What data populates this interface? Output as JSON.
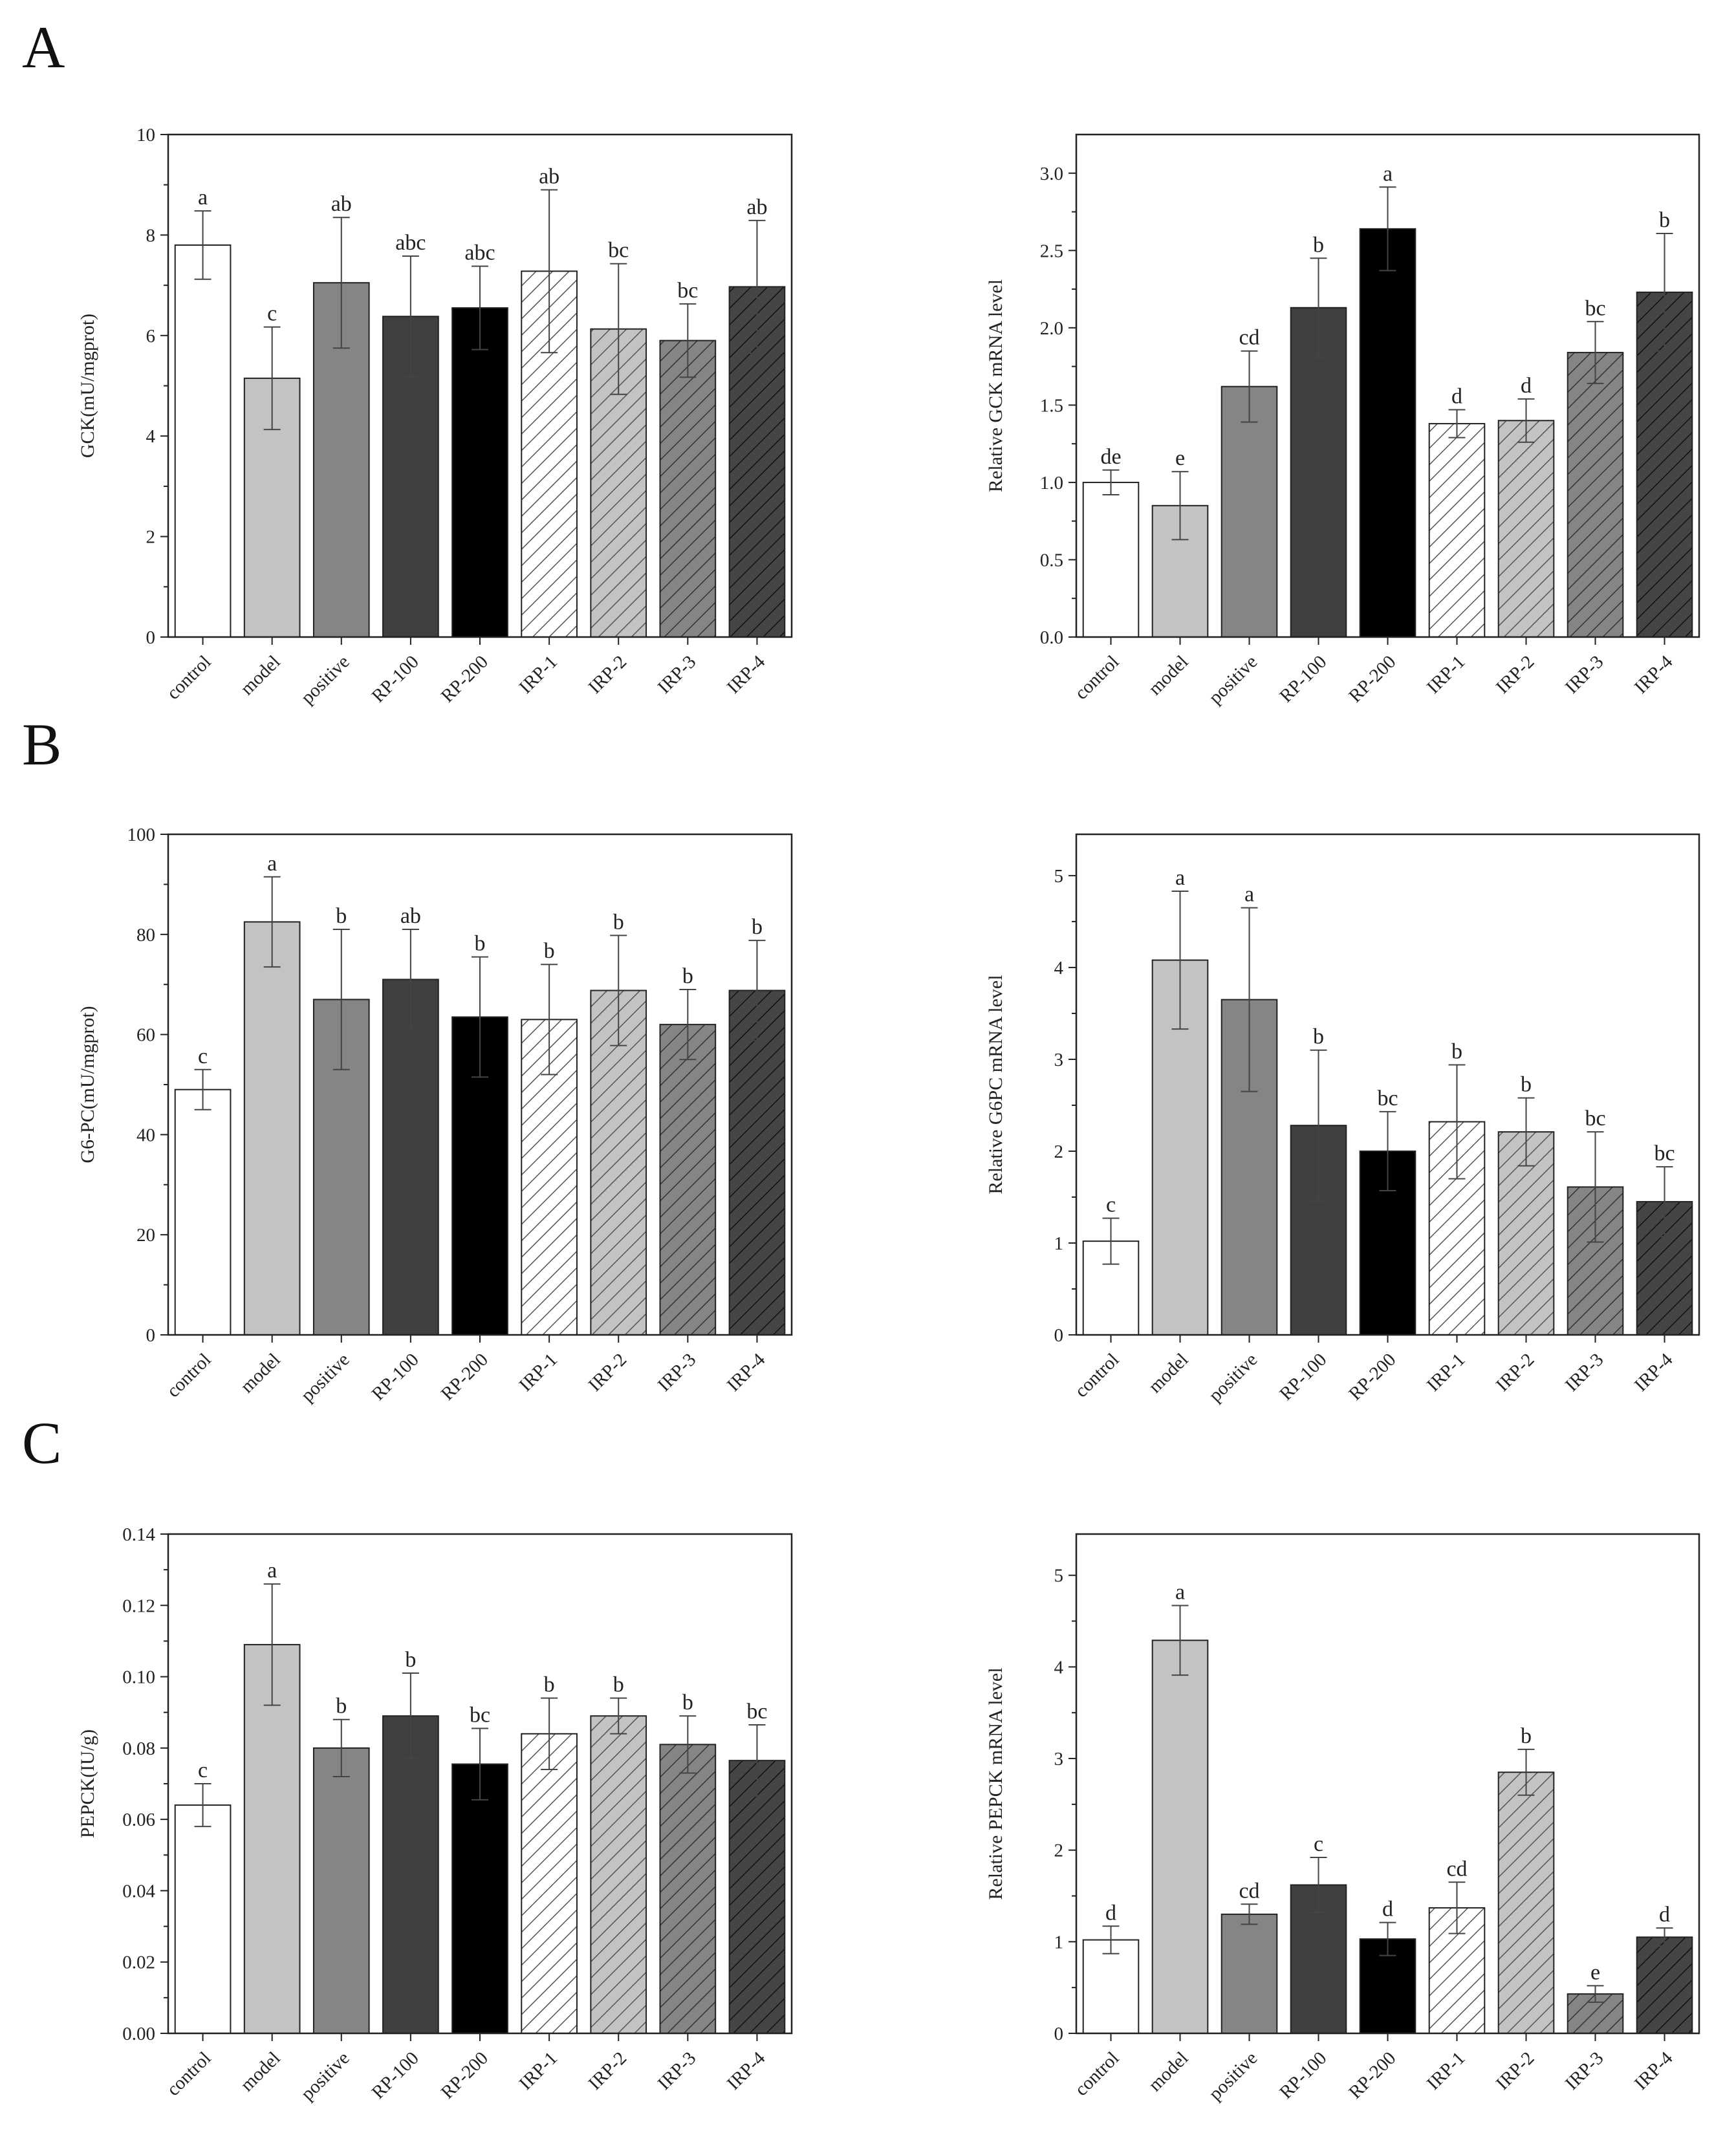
{
  "panels": {
    "a": "A",
    "b": "B",
    "c": "C"
  },
  "chart_data": [
    {
      "id": "gck-activity",
      "type": "bar",
      "ylabel": "GCK(mU/mgprot)",
      "ylim": [
        0,
        10
      ],
      "yticks": [
        "0",
        "2",
        "4",
        "6",
        "8",
        "10"
      ],
      "categories": [
        "control",
        "model",
        "positive",
        "RP-100",
        "RP-200",
        "IRP-1",
        "IRP-2",
        "IRP-3",
        "IRP-4"
      ],
      "values": [
        7.8,
        5.15,
        7.05,
        6.38,
        6.55,
        7.28,
        6.13,
        5.9,
        6.97
      ],
      "errors": [
        0.68,
        1.02,
        1.3,
        1.2,
        0.83,
        1.62,
        1.3,
        0.73,
        1.32
      ],
      "labels": [
        "a",
        "c",
        "ab",
        "abc",
        "abc",
        "ab",
        "bc",
        "bc",
        "ab"
      ]
    },
    {
      "id": "gck-mrna",
      "type": "bar",
      "ylabel": "Relative GCK mRNA level",
      "ylim": [
        0,
        3.25
      ],
      "yticks": [
        "0.0",
        "0.5",
        "1.0",
        "1.5",
        "2.0",
        "2.5",
        "3.0"
      ],
      "categories": [
        "control",
        "model",
        "positive",
        "RP-100",
        "RP-200",
        "IRP-1",
        "IRP-2",
        "IRP-3",
        "IRP-4"
      ],
      "values": [
        1.0,
        0.85,
        1.62,
        2.13,
        2.64,
        1.38,
        1.4,
        1.84,
        2.23
      ],
      "errors": [
        0.08,
        0.22,
        0.23,
        0.32,
        0.27,
        0.09,
        0.14,
        0.2,
        0.38
      ],
      "labels": [
        "de",
        "e",
        "cd",
        "b",
        "a",
        "d",
        "d",
        "bc",
        "b"
      ]
    },
    {
      "id": "g6pc-activity",
      "type": "bar",
      "ylabel": "G6-PC(mU/mgprot)",
      "ylim": [
        0,
        100
      ],
      "yticks": [
        "0",
        "20",
        "40",
        "60",
        "80",
        "100"
      ],
      "categories": [
        "control",
        "model",
        "positive",
        "RP-100",
        "RP-200",
        "IRP-1",
        "IRP-2",
        "IRP-3",
        "IRP-4"
      ],
      "values": [
        49,
        82.5,
        67,
        71,
        63.5,
        63,
        68.8,
        62,
        68.8
      ],
      "errors": [
        4,
        9,
        14,
        10,
        12,
        11,
        11,
        7,
        10
      ],
      "labels": [
        "c",
        "a",
        "b",
        "ab",
        "b",
        "b",
        "b",
        "b",
        "b"
      ]
    },
    {
      "id": "g6pc-mrna",
      "type": "bar",
      "ylabel": "Relative G6PC mRNA level",
      "ylim": [
        0,
        5.45
      ],
      "yticks": [
        "0",
        "1",
        "2",
        "3",
        "4",
        "5"
      ],
      "categories": [
        "control",
        "model",
        "positive",
        "RP-100",
        "RP-200",
        "IRP-1",
        "IRP-2",
        "IRP-3",
        "IRP-4"
      ],
      "values": [
        1.02,
        4.08,
        3.65,
        2.28,
        2.0,
        2.32,
        2.21,
        1.61,
        1.45
      ],
      "errors": [
        0.25,
        0.75,
        1.0,
        0.82,
        0.43,
        0.62,
        0.37,
        0.6,
        0.38
      ],
      "labels": [
        "c",
        "a",
        "a",
        "b",
        "bc",
        "b",
        "b",
        "bc",
        "bc"
      ]
    },
    {
      "id": "pepck-activity",
      "type": "bar",
      "ylabel": "PEPCK(IU/g)",
      "ylim": [
        0,
        0.14
      ],
      "yticks": [
        "0.00",
        "0.02",
        "0.04",
        "0.06",
        "0.08",
        "0.10",
        "0.12",
        "0.14"
      ],
      "categories": [
        "control",
        "model",
        "positive",
        "RP-100",
        "RP-200",
        "IRP-1",
        "IRP-2",
        "IRP-3",
        "IRP-4"
      ],
      "values": [
        0.064,
        0.109,
        0.08,
        0.089,
        0.0755,
        0.084,
        0.089,
        0.081,
        0.0765
      ],
      "errors": [
        0.006,
        0.017,
        0.008,
        0.012,
        0.01,
        0.01,
        0.005,
        0.008,
        0.01
      ],
      "labels": [
        "c",
        "a",
        "b",
        "b",
        "bc",
        "b",
        "b",
        "b",
        "bc"
      ]
    },
    {
      "id": "pepck-mrna",
      "type": "bar",
      "ylabel": "Relative PEPCK mRNA level",
      "ylim": [
        0,
        5.45
      ],
      "yticks": [
        "0",
        "1",
        "2",
        "3",
        "4",
        "5"
      ],
      "categories": [
        "control",
        "model",
        "positive",
        "RP-100",
        "RP-200",
        "IRP-1",
        "IRP-2",
        "IRP-3",
        "IRP-4"
      ],
      "values": [
        1.02,
        4.29,
        1.3,
        1.62,
        1.03,
        1.37,
        2.85,
        0.43,
        1.05
      ],
      "errors": [
        0.15,
        0.38,
        0.11,
        0.3,
        0.18,
        0.28,
        0.25,
        0.09,
        0.1
      ],
      "labels": [
        "d",
        "a",
        "cd",
        "c",
        "d",
        "cd",
        "b",
        "e",
        "d"
      ]
    }
  ]
}
